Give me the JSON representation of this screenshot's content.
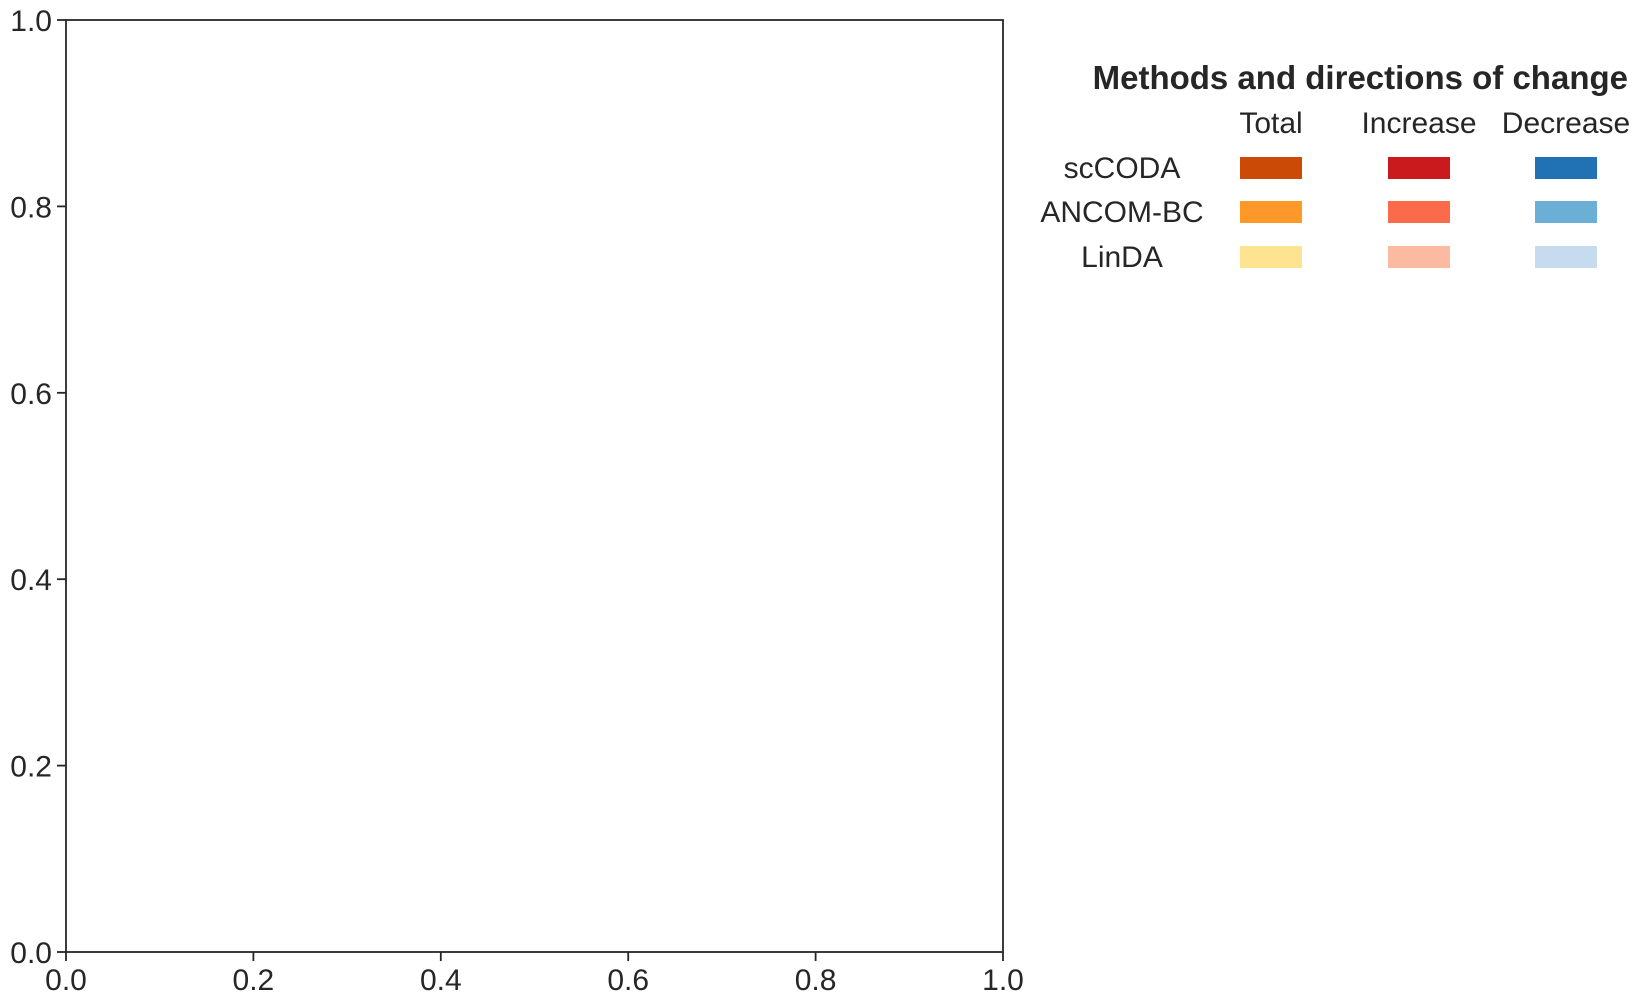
{
  "chart_data": {
    "type": "bar",
    "title": "",
    "xlabel": "",
    "ylabel": "",
    "xlim": [
      0.0,
      1.0
    ],
    "ylim": [
      0.0,
      1.0
    ],
    "xticks": [
      "0.0",
      "0.2",
      "0.4",
      "0.6",
      "0.8",
      "1.0"
    ],
    "yticks": [
      "0.0",
      "0.2",
      "0.4",
      "0.6",
      "0.8",
      "1.0"
    ],
    "grid": false,
    "series": [],
    "legend": {
      "title": "Methods and directions of change",
      "placement": "right",
      "columns": [
        "Total",
        "Increase",
        "Decrease"
      ],
      "rows": [
        {
          "method": "scCODA",
          "colors": [
            "#cb4a06",
            "#cb1a1e",
            "#2171b5"
          ]
        },
        {
          "method": "ANCOM-BC",
          "colors": [
            "#fe9929",
            "#fb6a4a",
            "#6baed6"
          ]
        },
        {
          "method": "LinDA",
          "colors": [
            "#fee391",
            "#fcbba1",
            "#c6dbef"
          ]
        }
      ]
    }
  }
}
